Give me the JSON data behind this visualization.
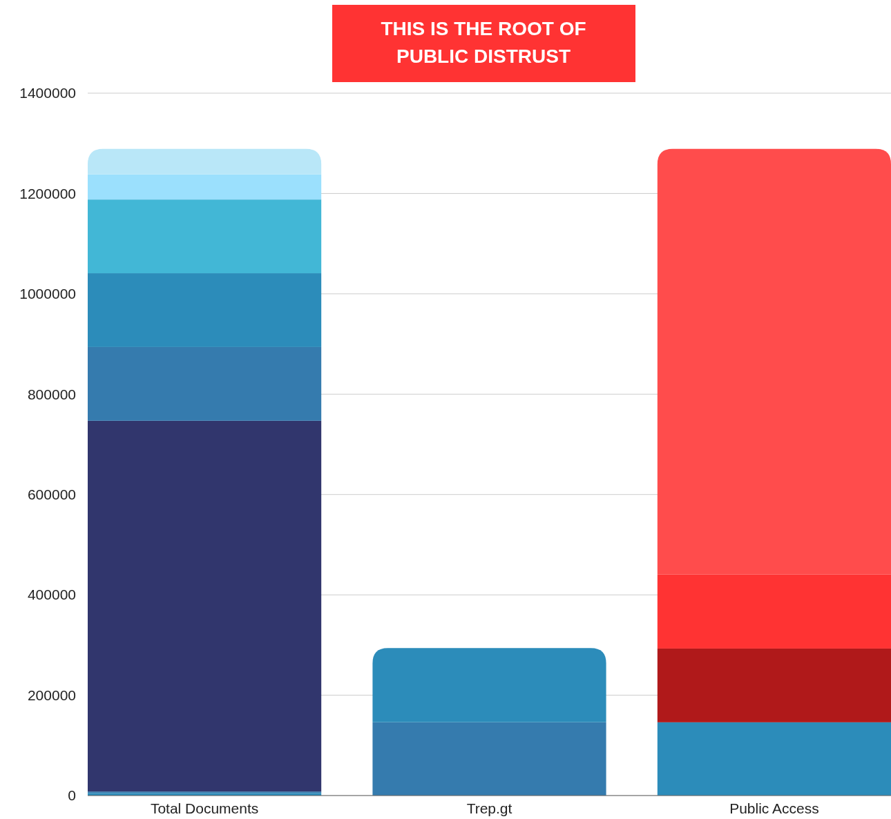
{
  "chart_data": {
    "type": "bar",
    "title": "THIS IS THE ROOT OF PUBLIC DISTRUST",
    "categories": [
      "Total Documents",
      "Trep.gt",
      "Public Access"
    ],
    "stacked": true,
    "series": [
      {
        "color": "#2c8cba",
        "values": [
          5000,
          null,
          146000
        ]
      },
      {
        "color": "#357bae",
        "values": [
          3000,
          146000,
          null
        ]
      },
      {
        "color": "#31366d",
        "values": [
          739000,
          null,
          null
        ]
      },
      {
        "color": "#357bae",
        "values": [
          147000,
          null,
          null
        ]
      },
      {
        "color": "#2c8cba",
        "values": [
          147000,
          148000,
          null
        ]
      },
      {
        "color": "#42b7d6",
        "values": [
          147000,
          null,
          null
        ]
      },
      {
        "color": "#9be0fd",
        "values": [
          50000,
          null,
          null
        ]
      },
      {
        "color": "#b9e7f8",
        "values": [
          51000,
          null,
          null
        ]
      },
      {
        "color": "#b0191a",
        "values": [
          null,
          null,
          147000
        ]
      },
      {
        "color": "#ff3333",
        "values": [
          null,
          null,
          148000
        ]
      },
      {
        "color": "#ff4c4c",
        "values": [
          null,
          null,
          848000
        ]
      }
    ],
    "ylim": [
      0,
      1400000
    ],
    "yticks": [
      0,
      200000,
      400000,
      600000,
      800000,
      1000000,
      1200000,
      1400000
    ],
    "grid": "y"
  }
}
